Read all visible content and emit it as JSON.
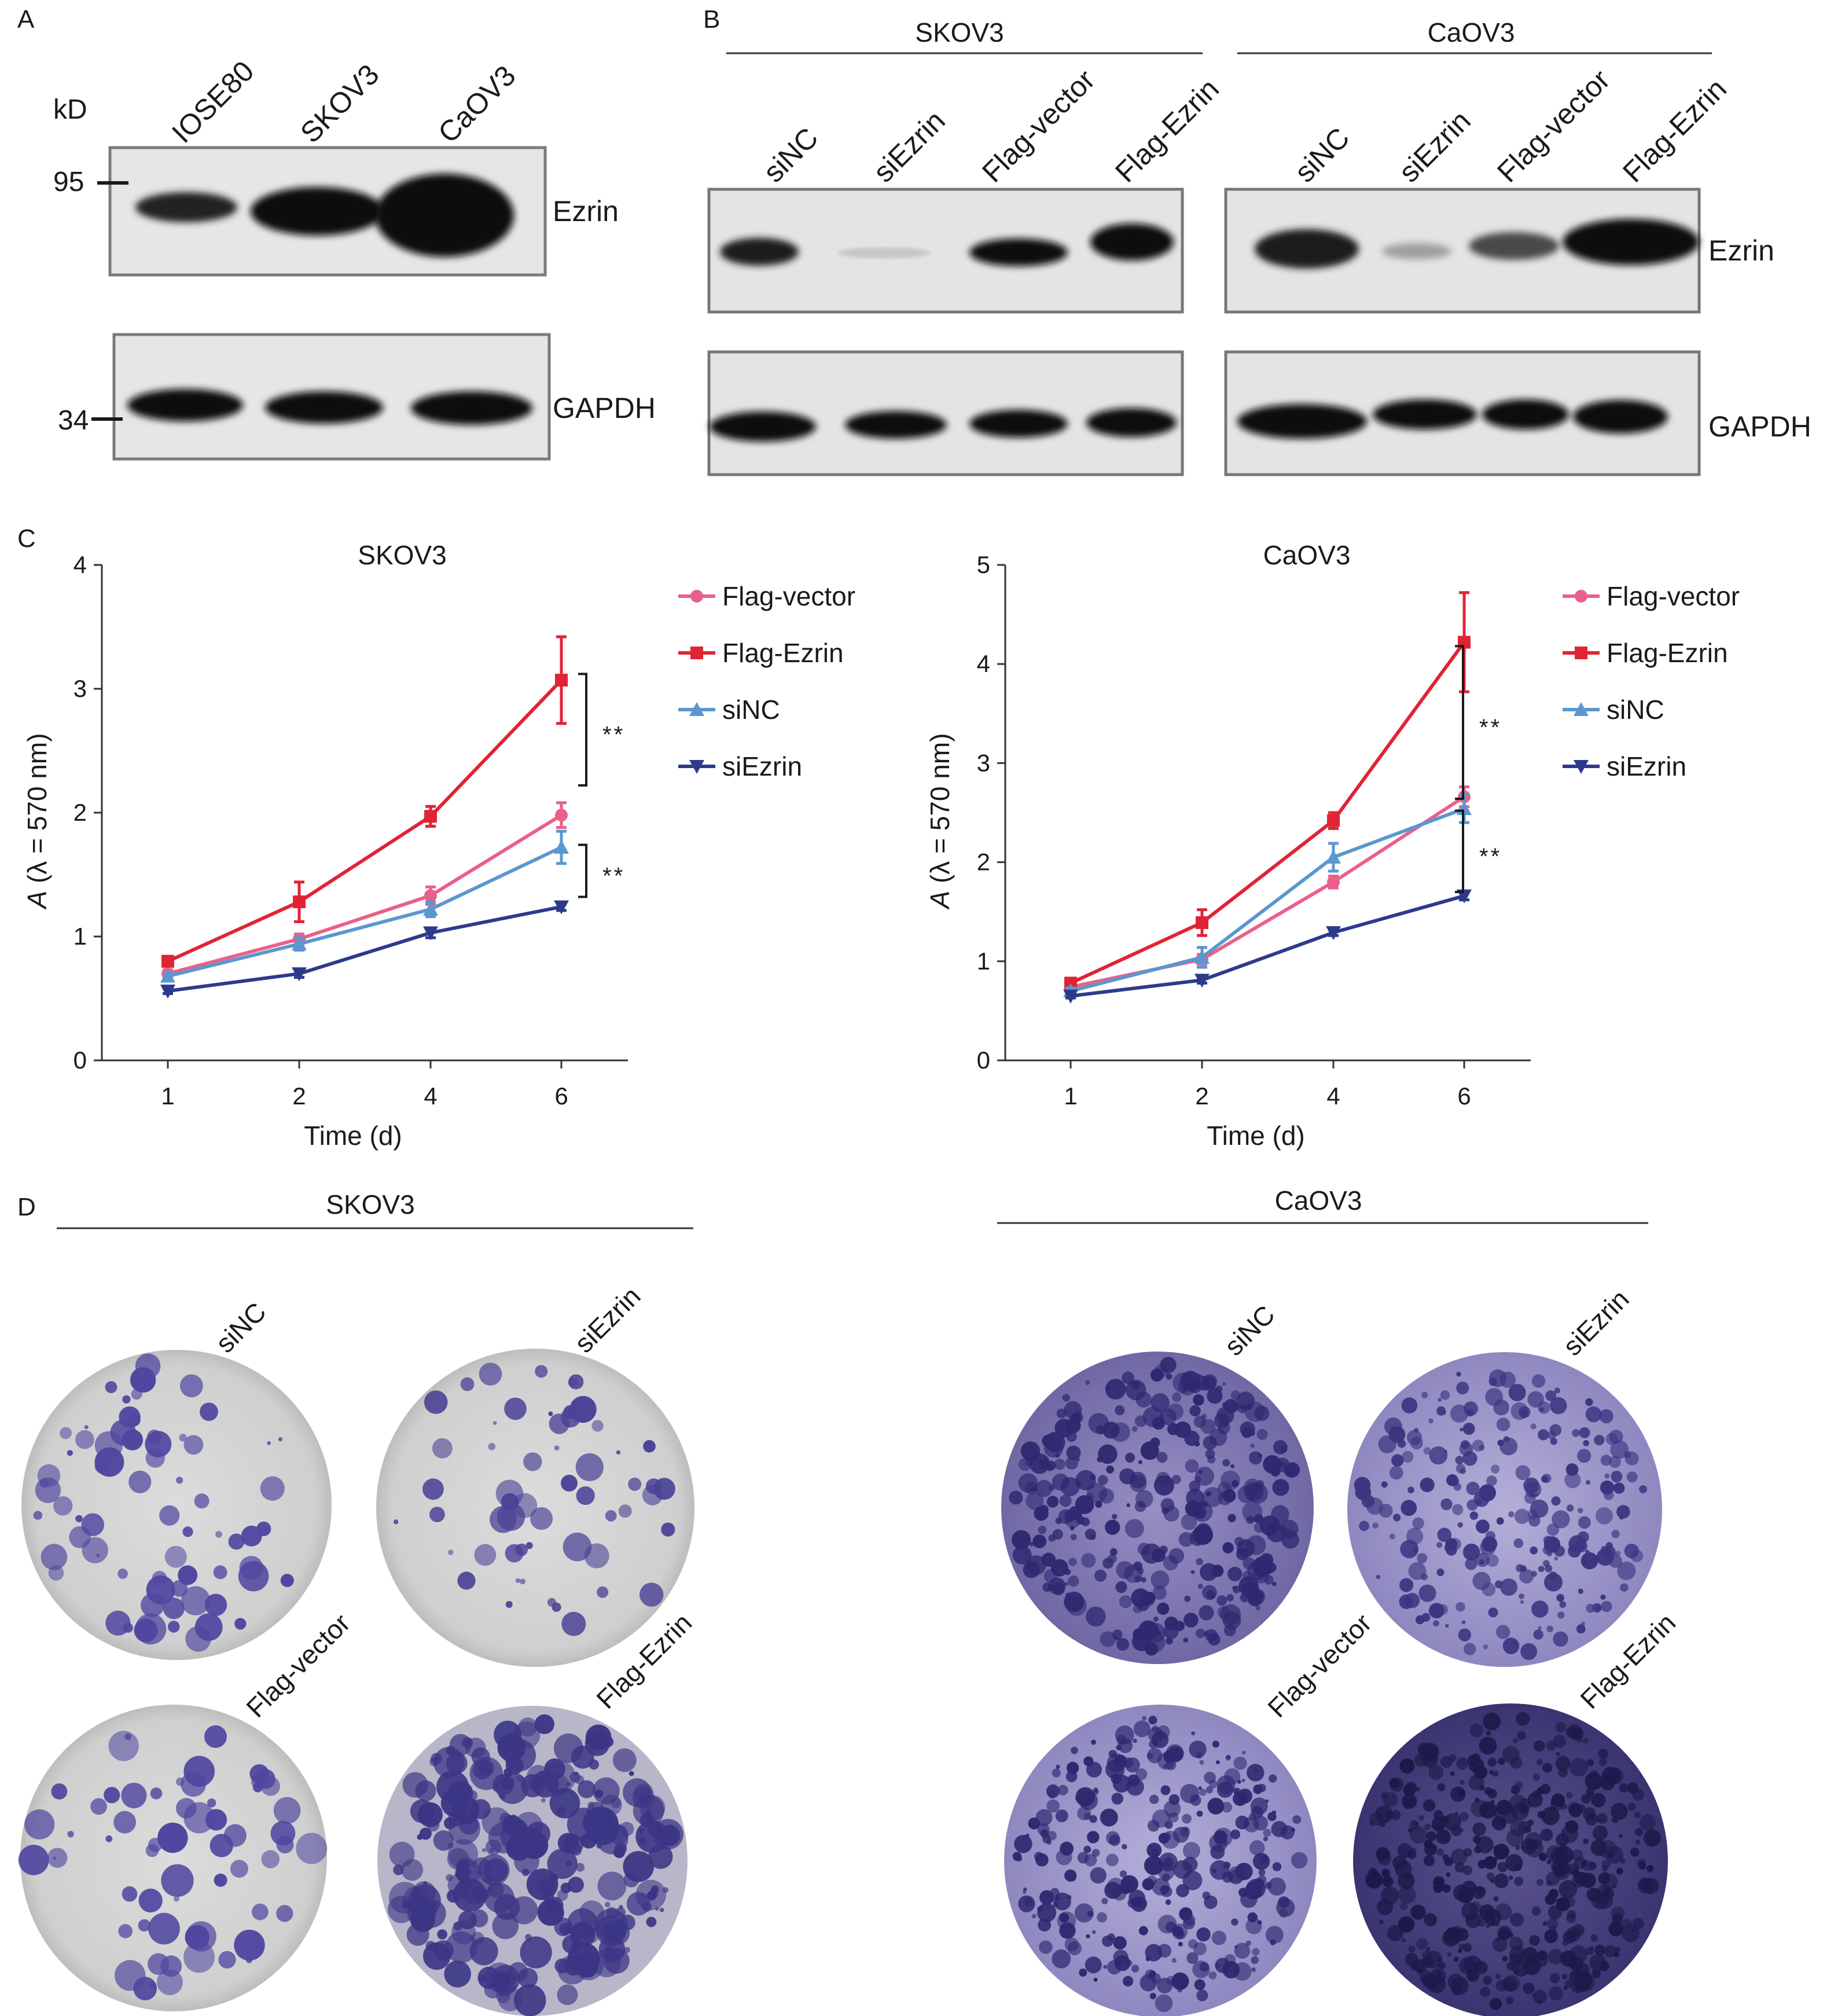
{
  "panel_labels": [
    "A",
    "B",
    "C",
    "D"
  ],
  "panel_a": {
    "kd_label": "kD",
    "markers": [
      "95",
      "34"
    ],
    "lanes": [
      "IOSE80",
      "SKOV3",
      "CaOV3"
    ],
    "proteins": [
      "Ezrin",
      "GAPDH"
    ]
  },
  "panel_b": {
    "cell_lines": [
      "SKOV3",
      "CaOV3"
    ],
    "lanes": [
      "siNC",
      "siEzrin",
      "Flag-vector",
      "Flag-Ezrin"
    ],
    "proteins": [
      "Ezrin",
      "GAPDH"
    ]
  },
  "panel_c": {
    "significance": "**",
    "legend": [
      "Flag-vector",
      "Flag-Ezrin",
      "siNC",
      "siEzrin"
    ],
    "series_colors": [
      "#e9608a",
      "#e02434",
      "#5a97cf",
      "#2d3a8c"
    ]
  },
  "panel_d": {
    "cell_lines": [
      "SKOV3",
      "CaOV3"
    ],
    "conditions": [
      "siNC",
      "siEzrin",
      "Flag-vector",
      "Flag-Ezrin"
    ]
  },
  "chart_data": [
    {
      "type": "line",
      "title": "SKOV3",
      "xlabel": "Time (d)",
      "ylabel": "A (λ = 570 nm)",
      "categories": [
        "1",
        "2",
        "4",
        "6"
      ],
      "ylim": [
        0,
        4
      ],
      "yticks": [
        0,
        1,
        2,
        3,
        4
      ],
      "series": [
        {
          "name": "Flag-vector",
          "values": [
            0.7,
            0.98,
            1.33,
            1.98
          ],
          "err": [
            0.03,
            0.04,
            0.07,
            0.1
          ]
        },
        {
          "name": "Flag-Ezrin",
          "values": [
            0.8,
            1.28,
            1.97,
            3.07
          ],
          "err": [
            0.04,
            0.16,
            0.08,
            0.35
          ]
        },
        {
          "name": "siNC",
          "values": [
            0.68,
            0.94,
            1.22,
            1.72
          ],
          "err": [
            0.03,
            0.05,
            0.06,
            0.13
          ]
        },
        {
          "name": "siEzrin",
          "values": [
            0.56,
            0.7,
            1.03,
            1.24
          ],
          "err": [
            0.02,
            0.03,
            0.04,
            0.03
          ]
        }
      ]
    },
    {
      "type": "line",
      "title": "CaOV3",
      "xlabel": "Time (d)",
      "ylabel": "A (λ = 570 nm)",
      "categories": [
        "1",
        "2",
        "4",
        "6"
      ],
      "ylim": [
        0,
        5
      ],
      "yticks": [
        0,
        1,
        2,
        3,
        4,
        5
      ],
      "series": [
        {
          "name": "Flag-vector",
          "values": [
            0.74,
            1.02,
            1.8,
            2.66
          ],
          "err": [
            0.03,
            0.05,
            0.06,
            0.1
          ]
        },
        {
          "name": "Flag-Ezrin",
          "values": [
            0.78,
            1.39,
            2.42,
            4.22
          ],
          "err": [
            0.04,
            0.13,
            0.08,
            0.5
          ]
        },
        {
          "name": "siNC",
          "values": [
            0.7,
            1.04,
            2.05,
            2.54
          ],
          "err": [
            0.03,
            0.1,
            0.14,
            0.14
          ]
        },
        {
          "name": "siEzrin",
          "values": [
            0.65,
            0.81,
            1.29,
            1.66
          ],
          "err": [
            0.02,
            0.03,
            0.03,
            0.04
          ]
        }
      ]
    }
  ]
}
